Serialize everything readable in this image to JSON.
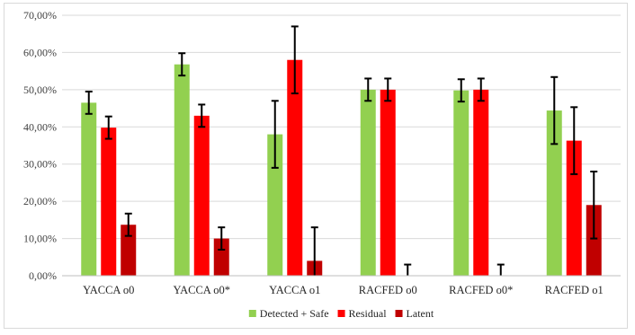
{
  "chart_data": {
    "type": "bar",
    "title": "",
    "xlabel": "",
    "ylabel": "",
    "ylim": [
      0,
      70
    ],
    "y_ticks": [
      "0,00%",
      "10,00%",
      "20,00%",
      "30,00%",
      "40,00%",
      "50,00%",
      "60,00%",
      "70,00%"
    ],
    "grid": true,
    "legend_position": "bottom",
    "categories": [
      "YACCA o0",
      "YACCA o0*",
      "YACCA o1",
      "RACFED o0",
      "RACFED o0*",
      "RACFED o1"
    ],
    "series": [
      {
        "name": "Detected + Safe",
        "color": "#92d050",
        "values": [
          46.5,
          56.8,
          38.0,
          50.0,
          49.8,
          44.4
        ],
        "errors": [
          3.0,
          3.0,
          9.0,
          3.0,
          3.0,
          9.0
        ]
      },
      {
        "name": "Residual",
        "color": "#ff0000",
        "values": [
          39.8,
          43.0,
          58.0,
          50.0,
          50.0,
          36.3
        ],
        "errors": [
          3.0,
          3.0,
          9.0,
          3.0,
          3.0,
          9.0
        ]
      },
      {
        "name": "Latent",
        "color": "#c00000",
        "values": [
          13.7,
          10.0,
          4.0,
          0.0,
          0.0,
          19.0
        ],
        "errors": [
          3.0,
          3.0,
          9.0,
          3.0,
          3.0,
          9.0
        ]
      }
    ]
  }
}
